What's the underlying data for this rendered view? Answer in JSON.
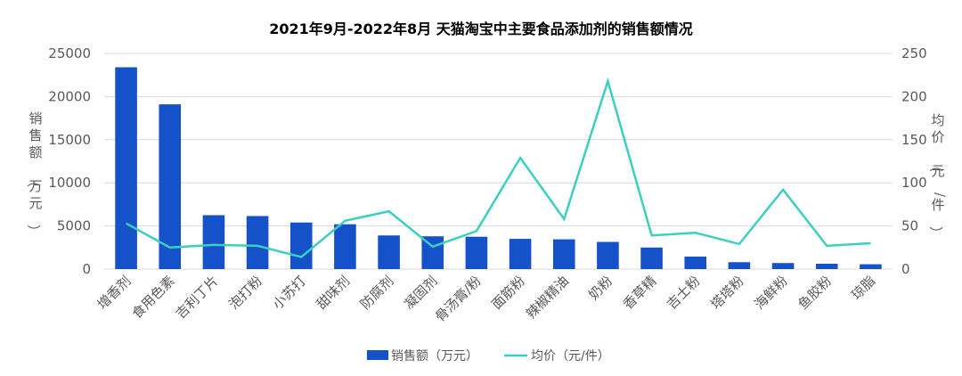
{
  "chart_data": {
    "type": "bar",
    "title": "2021年9月-2022年8月 天猫淘宝中主要食品添加剂的销售额情况",
    "categories": [
      "增香剂",
      "食用色素",
      "吉利丁片",
      "泡打粉",
      "小苏打",
      "甜味剂",
      "防腐剂",
      "凝固剂",
      "骨汤膏/粉",
      "面筋粉",
      "辣椒精油",
      "奶粉",
      "香草精",
      "吉士粉",
      "塔塔粉",
      "海鲜粉",
      "鱼胶粉",
      "琼脂"
    ],
    "series": [
      {
        "name": "销售额（万元）",
        "type": "bar",
        "axis": "left",
        "color": "#1551c8",
        "values": [
          23400,
          19100,
          6250,
          6150,
          5400,
          5200,
          3900,
          3800,
          3750,
          3500,
          3450,
          3150,
          2500,
          1450,
          800,
          700,
          620,
          560
        ]
      },
      {
        "name": "均价（元/件）",
        "type": "line",
        "axis": "right",
        "color": "#3ccfbf",
        "values": [
          53,
          25,
          28,
          27,
          14,
          56,
          67,
          26,
          44,
          129,
          58,
          218,
          39,
          42,
          29,
          92,
          27,
          30
        ]
      }
    ],
    "y_left": {
      "label": "销售额（万元）",
      "min": 0,
      "max": 25000,
      "ticks": [
        0,
        5000,
        10000,
        15000,
        20000,
        25000
      ]
    },
    "y_right": {
      "label": "均价（元/件）",
      "min": 0,
      "max": 250,
      "ticks": [
        0,
        50,
        100,
        150,
        200,
        250
      ]
    },
    "grid": true,
    "legend_position": "bottom"
  }
}
